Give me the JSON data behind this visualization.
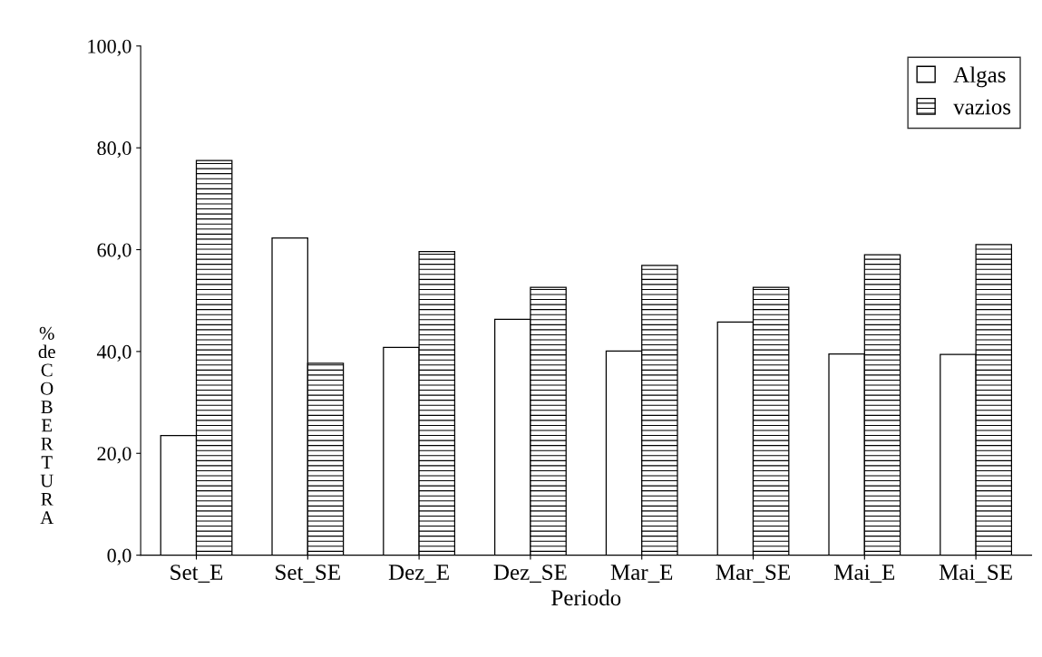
{
  "chart_data": {
    "type": "bar",
    "xlabel": "Periodo",
    "ylabel": "% de COBERTURA",
    "categories": [
      "Set_E",
      "Set_SE",
      "Dez_E",
      "Dez_SE",
      "Mar_E",
      "Mar_SE",
      "Mai_E",
      "Mai_SE"
    ],
    "series": [
      {
        "name": "Algas",
        "color": "#ffffff",
        "values": [
          23.5,
          62.3,
          40.8,
          46.3,
          40.1,
          45.8,
          39.5,
          39.4
        ]
      },
      {
        "name": "vazios",
        "color": "#000000",
        "values": [
          77.5,
          37.7,
          59.6,
          52.6,
          56.9,
          52.6,
          59.0,
          61.0
        ]
      }
    ],
    "ylim": [
      0,
      100
    ],
    "yticks": [
      {
        "value": 0,
        "label": "0,0"
      },
      {
        "value": 20,
        "label": "20,0"
      },
      {
        "value": 40,
        "label": "40,0"
      },
      {
        "value": 60,
        "label": "60,0"
      },
      {
        "value": 80,
        "label": "80,0"
      },
      {
        "value": 100,
        "label": "100,0"
      }
    ],
    "grid": false,
    "legend": "top right"
  }
}
